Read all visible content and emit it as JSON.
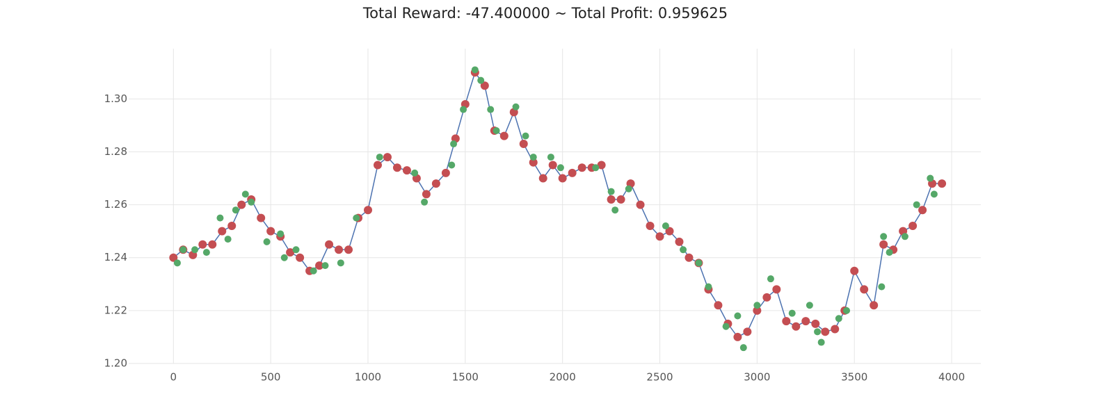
{
  "chart_data": {
    "type": "line",
    "title": "Total Reward: -47.400000 ~ Total Profit: 0.959625",
    "xlim": [
      -230,
      4150
    ],
    "ylim": [
      1.2,
      1.319
    ],
    "xticks": [
      0,
      500,
      1000,
      1500,
      2000,
      2500,
      3000,
      3500,
      4000
    ],
    "yticks": [
      {
        "value": 1.2,
        "label": "1.20"
      },
      {
        "value": 1.22,
        "label": "1.22"
      },
      {
        "value": 1.24,
        "label": "1.24"
      },
      {
        "value": 1.26,
        "label": "1.26"
      },
      {
        "value": 1.28,
        "label": "1.28"
      },
      {
        "value": 1.3,
        "label": "1.30"
      }
    ],
    "grid": true,
    "series": [
      {
        "color": "#4c72b0",
        "line": true,
        "marker_color": "#c44e52",
        "x": [
          0,
          50,
          100,
          150,
          200,
          250,
          300,
          350,
          400,
          450,
          500,
          550,
          600,
          650,
          700,
          750,
          800,
          850,
          900,
          950,
          1000,
          1050,
          1100,
          1150,
          1200,
          1250,
          1300,
          1350,
          1400,
          1450,
          1500,
          1550,
          1600,
          1650,
          1700,
          1750,
          1800,
          1850,
          1900,
          1950,
          2000,
          2050,
          2100,
          2150,
          2200,
          2250,
          2300,
          2350,
          2400,
          2450,
          2500,
          2550,
          2600,
          2650,
          2700,
          2750,
          2800,
          2850,
          2900,
          2950,
          3000,
          3050,
          3100,
          3150,
          3200,
          3250,
          3300,
          3350,
          3400,
          3450,
          3500,
          3550,
          3600,
          3650,
          3700,
          3750,
          3800,
          3850,
          3900,
          3950
        ],
        "values": [
          1.24,
          1.243,
          1.241,
          1.245,
          1.245,
          1.25,
          1.252,
          1.26,
          1.262,
          1.255,
          1.25,
          1.248,
          1.242,
          1.24,
          1.235,
          1.237,
          1.245,
          1.243,
          1.243,
          1.255,
          1.258,
          1.275,
          1.278,
          1.274,
          1.273,
          1.27,
          1.264,
          1.268,
          1.272,
          1.285,
          1.298,
          1.31,
          1.305,
          1.288,
          1.286,
          1.295,
          1.283,
          1.276,
          1.27,
          1.275,
          1.27,
          1.272,
          1.274,
          1.274,
          1.275,
          1.262,
          1.262,
          1.268,
          1.26,
          1.252,
          1.248,
          1.25,
          1.246,
          1.24,
          1.238,
          1.228,
          1.222,
          1.215,
          1.21,
          1.212,
          1.22,
          1.225,
          1.228,
          1.216,
          1.214,
          1.216,
          1.215,
          1.212,
          1.213,
          1.22,
          1.235,
          1.228,
          1.222,
          1.245,
          1.243,
          1.25,
          1.252,
          1.258,
          1.268,
          1.268
        ]
      },
      {
        "line": false,
        "marker_color": "#55a868",
        "x": [
          20,
          50,
          110,
          170,
          240,
          280,
          320,
          370,
          400,
          480,
          550,
          570,
          630,
          720,
          780,
          860,
          940,
          1060,
          1240,
          1290,
          1430,
          1440,
          1490,
          1550,
          1580,
          1630,
          1660,
          1760,
          1810,
          1850,
          1940,
          1990,
          2170,
          2250,
          2270,
          2340,
          2530,
          2620,
          2700,
          2750,
          2840,
          2900,
          2930,
          3000,
          3070,
          3180,
          3270,
          3310,
          3330,
          3420,
          3460,
          3640,
          3650,
          3680,
          3760,
          3820,
          3890,
          3910
        ],
        "values": [
          1.238,
          1.243,
          1.243,
          1.242,
          1.255,
          1.247,
          1.258,
          1.264,
          1.261,
          1.246,
          1.249,
          1.24,
          1.243,
          1.235,
          1.237,
          1.238,
          1.255,
          1.278,
          1.272,
          1.261,
          1.275,
          1.283,
          1.296,
          1.311,
          1.307,
          1.296,
          1.288,
          1.297,
          1.286,
          1.278,
          1.278,
          1.274,
          1.274,
          1.265,
          1.258,
          1.266,
          1.252,
          1.243,
          1.238,
          1.229,
          1.214,
          1.218,
          1.206,
          1.222,
          1.232,
          1.219,
          1.222,
          1.212,
          1.208,
          1.217,
          1.22,
          1.229,
          1.248,
          1.242,
          1.248,
          1.26,
          1.27,
          1.264
        ]
      }
    ]
  }
}
